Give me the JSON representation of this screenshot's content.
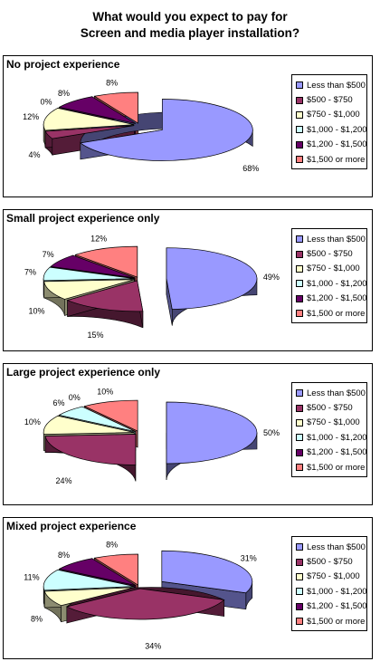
{
  "title_line1": "What would you expect to pay for",
  "title_line2": "Screen and media player installation?",
  "legend_labels": [
    "Less than $500",
    "$500 - $750",
    "$750 - $1,000",
    "$1,000 - $1,200",
    "$1,200 - $1,500",
    "$1,500 or more"
  ],
  "colors": [
    "#9999ff",
    "#993366",
    "#ffffcc",
    "#ccffff",
    "#660066",
    "#ff8080"
  ],
  "chart_data": [
    {
      "type": "pie",
      "title": "No project experience",
      "categories": [
        "Less than $500",
        "$500 - $750",
        "$750 - $1,000",
        "$1,000 - $1,200",
        "$1,200 - $1,500",
        "$1,500 or more"
      ],
      "values": [
        68,
        4,
        12,
        0,
        8,
        8
      ],
      "labels": [
        "68%",
        "4%",
        "12%",
        "0%",
        "8%",
        "8%"
      ]
    },
    {
      "type": "pie",
      "title": "Small project experience only",
      "categories": [
        "Less than $500",
        "$500 - $750",
        "$750 - $1,000",
        "$1,000 - $1,200",
        "$1,200 - $1,500",
        "$1,500 or more"
      ],
      "values": [
        49,
        15,
        10,
        7,
        7,
        12
      ],
      "labels": [
        "49%",
        "15%",
        "10%",
        "7%",
        "7%",
        "12%"
      ]
    },
    {
      "type": "pie",
      "title": "Large project experience only",
      "categories": [
        "Less than $500",
        "$500 - $750",
        "$750 - $1,000",
        "$1,000 - $1,200",
        "$1,200 - $1,500",
        "$1,500 or more"
      ],
      "values": [
        50,
        24,
        10,
        6,
        0,
        10
      ],
      "labels": [
        "50%",
        "24%",
        "10%",
        "6%",
        "0%",
        "10%"
      ]
    },
    {
      "type": "pie",
      "title": "Mixed project experience",
      "categories": [
        "Less than $500",
        "$500 - $750",
        "$750 - $1,000",
        "$1,000 - $1,200",
        "$1,200 - $1,500",
        "$1,500 or more"
      ],
      "values": [
        31,
        34,
        8,
        11,
        8,
        8
      ],
      "labels": [
        "31%",
        "34%",
        "8%",
        "11%",
        "8%",
        "8%"
      ]
    }
  ]
}
